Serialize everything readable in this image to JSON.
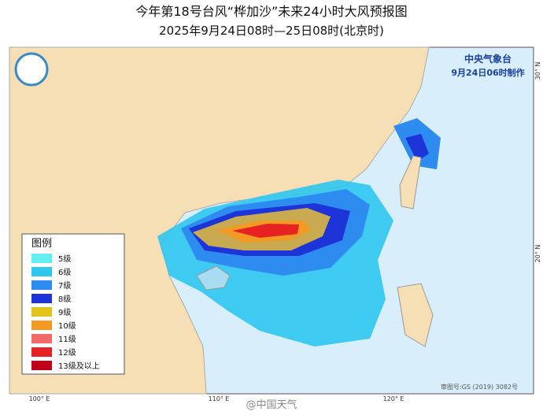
{
  "header": {
    "title": "今年第18号台风“桦加沙”未来24小时大风预报图",
    "subtitle": "2025年9月24日08时—25日08时(北京时)"
  },
  "agency": {
    "name": "中央气象台",
    "issued": "9月24日06时制作"
  },
  "axes": {
    "lon": [
      "100° E",
      "110° E",
      "120° E"
    ],
    "lat": [
      "20° N",
      "30° N"
    ]
  },
  "legend": {
    "title": "图例",
    "items": [
      {
        "label": "5级",
        "color": "#62eef0"
      },
      {
        "label": "6级",
        "color": "#2fc6ef"
      },
      {
        "label": "7级",
        "color": "#2e8cf0"
      },
      {
        "label": "8级",
        "color": "#1c34d8"
      },
      {
        "label": "9级",
        "color": "#e3c21c"
      },
      {
        "label": "10级",
        "color": "#f29a23"
      },
      {
        "label": "11级",
        "color": "#f06a6a"
      },
      {
        "label": "12级",
        "color": "#e62222"
      },
      {
        "label": "13级及以上",
        "color": "#c00018"
      }
    ]
  },
  "footer": {
    "approval": "审图号:GS (2019) 3082号",
    "watermark": "@中国天气"
  }
}
